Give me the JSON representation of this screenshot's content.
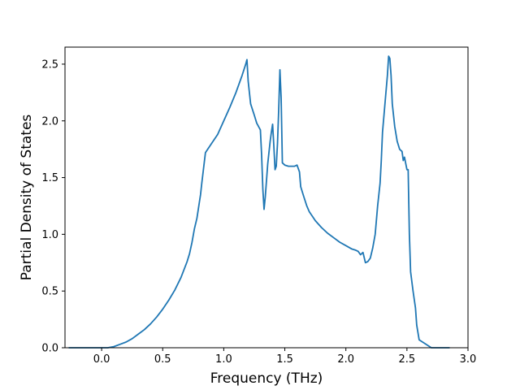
{
  "chart_data": {
    "type": "line",
    "title": "",
    "xlabel": "Frequency (THz)",
    "ylabel": "Partial Density of States",
    "xlim": [
      -0.3,
      3.0
    ],
    "ylim": [
      0.0,
      2.65
    ],
    "xticks": [
      0.0,
      0.5,
      1.0,
      1.5,
      2.0,
      2.5,
      3.0
    ],
    "xtick_labels": [
      "0.0",
      "0.5",
      "1.0",
      "1.5",
      "2.0",
      "2.5",
      "3.0"
    ],
    "yticks": [
      0.0,
      0.5,
      1.0,
      1.5,
      2.0,
      2.5
    ],
    "ytick_labels": [
      "0.0",
      "0.5",
      "1.0",
      "1.5",
      "2.0",
      "2.5"
    ],
    "grid": false,
    "line_color": "#1f77b4",
    "series": [
      {
        "x": [
          -0.27,
          -0.1,
          0.0,
          0.05,
          0.1,
          0.15,
          0.2,
          0.25,
          0.3,
          0.35,
          0.4,
          0.45,
          0.5,
          0.55,
          0.6,
          0.65,
          0.7,
          0.72,
          0.74,
          0.76,
          0.78,
          0.8,
          0.81,
          0.82,
          0.85,
          0.9,
          0.95,
          1.0,
          1.05,
          1.1,
          1.15,
          1.18,
          1.19,
          1.2,
          1.22,
          1.25,
          1.27,
          1.29,
          1.3,
          1.31,
          1.32,
          1.33,
          1.34,
          1.36,
          1.38,
          1.39,
          1.4,
          1.41,
          1.42,
          1.43,
          1.44,
          1.45,
          1.46,
          1.47,
          1.48,
          1.5,
          1.53,
          1.55,
          1.58,
          1.6,
          1.62,
          1.63,
          1.65,
          1.68,
          1.7,
          1.75,
          1.8,
          1.85,
          1.9,
          1.95,
          2.0,
          2.05,
          2.08,
          2.1,
          2.12,
          2.14,
          2.16,
          2.18,
          2.2,
          2.22,
          2.24,
          2.26,
          2.28,
          2.29,
          2.3,
          2.32,
          2.34,
          2.35,
          2.36,
          2.37,
          2.38,
          2.4,
          2.42,
          2.44,
          2.46,
          2.47,
          2.48,
          2.5,
          2.51,
          2.52,
          2.53,
          2.55,
          2.57,
          2.58,
          2.6,
          2.7,
          2.85
        ],
        "y": [
          0.0,
          0.0,
          0.0,
          0.0,
          0.01,
          0.03,
          0.05,
          0.08,
          0.12,
          0.16,
          0.21,
          0.27,
          0.34,
          0.42,
          0.51,
          0.62,
          0.76,
          0.83,
          0.93,
          1.05,
          1.14,
          1.28,
          1.35,
          1.45,
          1.72,
          1.8,
          1.88,
          2.0,
          2.12,
          2.25,
          2.4,
          2.5,
          2.54,
          2.35,
          2.15,
          2.05,
          1.98,
          1.94,
          1.92,
          1.7,
          1.4,
          1.22,
          1.33,
          1.62,
          1.82,
          1.9,
          1.97,
          1.78,
          1.57,
          1.6,
          1.8,
          2.1,
          2.45,
          2.2,
          1.63,
          1.61,
          1.6,
          1.6,
          1.6,
          1.61,
          1.55,
          1.42,
          1.35,
          1.25,
          1.2,
          1.12,
          1.06,
          1.01,
          0.97,
          0.93,
          0.9,
          0.87,
          0.86,
          0.85,
          0.82,
          0.84,
          0.75,
          0.76,
          0.79,
          0.88,
          1.0,
          1.25,
          1.45,
          1.65,
          1.9,
          2.15,
          2.4,
          2.57,
          2.55,
          2.4,
          2.15,
          1.95,
          1.82,
          1.75,
          1.73,
          1.65,
          1.68,
          1.57,
          1.57,
          1.0,
          0.67,
          0.5,
          0.35,
          0.2,
          0.07,
          0.0,
          0.0
        ]
      }
    ]
  }
}
